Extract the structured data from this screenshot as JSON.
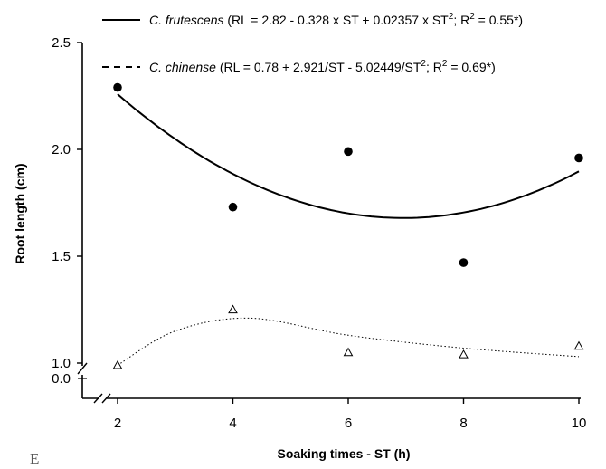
{
  "chart_data": {
    "type": "scatter",
    "title": "",
    "xlabel": "Soaking times  - ST (h)",
    "ylabel": "Root length (cm)",
    "x_ticks": [
      "2",
      "4",
      "6",
      "8",
      "10"
    ],
    "y_ticks": [
      "1.0",
      "1.5",
      "2.0",
      "2.5"
    ],
    "y_break_label": "0.0",
    "xlim": [
      2,
      10
    ],
    "ylim": [
      1.0,
      2.5
    ],
    "axis_break": true,
    "grid": false,
    "legend_position": "top",
    "panel_letter": "E",
    "series": [
      {
        "name": "C. frutescens",
        "legend_name": "C. frutescens",
        "legend_equation": " (RL = 2.82 - 0.328 x ST + 0.02357 x ST",
        "legend_sup1": "2",
        "legend_mid": "; R",
        "legend_sup2": "2",
        "legend_end": " = 0.55*)",
        "marker": "filled-circle",
        "line_style": "solid",
        "color": "#000000",
        "x": [
          2,
          4,
          6,
          8,
          10
        ],
        "y": [
          2.29,
          1.73,
          1.99,
          1.47,
          1.96
        ],
        "fit": {
          "model": "quadratic",
          "a": 2.82,
          "b": -0.328,
          "c": 0.02357
        }
      },
      {
        "name": "C. chinense",
        "legend_name": "C. chinense",
        "legend_equation": " (RL = 0.78 + 2.921/ST - 5.02449/ST",
        "legend_sup1": "2",
        "legend_mid": "; R",
        "legend_sup2": "2",
        "legend_end": " = 0.69*)",
        "marker": "open-triangle",
        "line_style": "dotted",
        "color": "#000000",
        "x": [
          2,
          4,
          6,
          8,
          10
        ],
        "y": [
          0.99,
          1.25,
          1.05,
          1.04,
          1.08
        ]
      }
    ]
  }
}
